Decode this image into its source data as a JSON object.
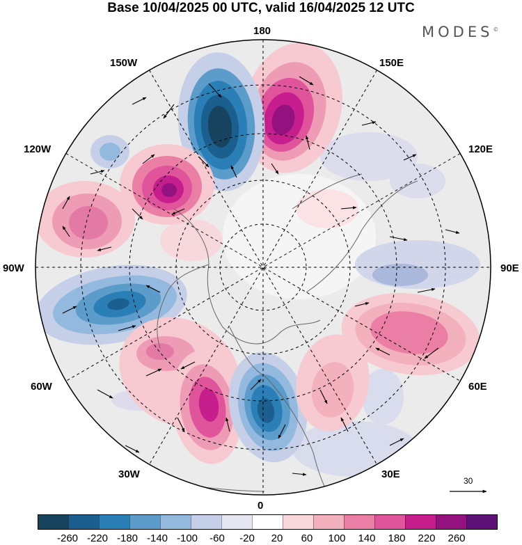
{
  "title": "Base 10/04/2025 00 UTC, valid 16/04/2025 12 UTC",
  "brand": "MODES",
  "brand_mark": "©",
  "longitude_labels": {
    "lon_180": "180",
    "lon_150E": "150E",
    "lon_120E": "120E",
    "lon_90E": "90E",
    "lon_60E": "60E",
    "lon_30E": "30E",
    "lon_0": "0",
    "lon_30W": "30W",
    "lon_60W": "60W",
    "lon_90W": "90W",
    "lon_120W": "120W",
    "lon_150W": "150W"
  },
  "colorbar": {
    "ticks": [
      "-260",
      "-220",
      "-180",
      "-140",
      "-100",
      "-60",
      "-20",
      "20",
      "60",
      "100",
      "140",
      "180",
      "220",
      "260"
    ],
    "colors": [
      "#17435f",
      "#1b5f8e",
      "#2b7fb7",
      "#5b9ccb",
      "#93b9de",
      "#c6cfe8",
      "#e6e6f2",
      "#ffffff",
      "#f9d8dc",
      "#f3b0bd",
      "#ea7ea5",
      "#e0549b",
      "#c71e8d",
      "#93127f",
      "#5e1278"
    ]
  },
  "reference_vector": {
    "label": "30"
  },
  "colors": {
    "land_outline": "#666666",
    "grid": "#000000",
    "map_background": "#ebebeb"
  }
}
